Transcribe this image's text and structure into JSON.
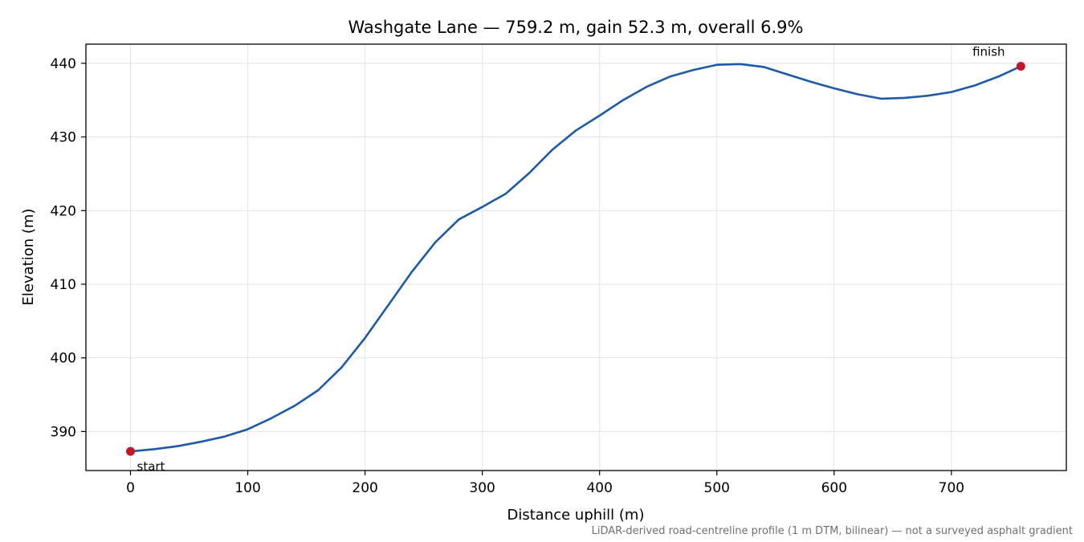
{
  "chart_data": {
    "type": "line",
    "title": "Washgate Lane — 759.2 m, gain 52.3 m, overall 6.9%",
    "xlabel": "Distance uphill (m)",
    "ylabel": "Elevation (m)",
    "xlim": [
      -38,
      798
    ],
    "ylim": [
      384.7,
      442.6
    ],
    "x_ticks": [
      0,
      100,
      200,
      300,
      400,
      500,
      600,
      700
    ],
    "y_ticks": [
      390,
      400,
      410,
      420,
      430,
      440
    ],
    "grid": true,
    "line_color": "#1f5aa6",
    "marker_color": "#c0182a",
    "series": [
      {
        "x": [
          0,
          20,
          40,
          60,
          80,
          100,
          120,
          140,
          160,
          180,
          200,
          220,
          240,
          260,
          280,
          300,
          320,
          340,
          360,
          380,
          400,
          420,
          440,
          460,
          480,
          500,
          520,
          540,
          560,
          580,
          600,
          620,
          640,
          660,
          680,
          700,
          720,
          740,
          759.2
        ],
        "y": [
          387.3,
          387.6,
          388.0,
          388.6,
          389.3,
          390.3,
          391.8,
          393.5,
          395.6,
          398.7,
          402.7,
          407.2,
          411.7,
          415.7,
          418.8,
          420.5,
          422.3,
          425.1,
          428.3,
          430.9,
          432.9,
          435.0,
          436.8,
          438.2,
          439.1,
          439.8,
          439.9,
          439.5,
          438.5,
          437.5,
          436.6,
          435.8,
          435.2,
          435.3,
          435.6,
          436.1,
          437.0,
          438.2,
          439.6
        ]
      }
    ],
    "annotations": [
      {
        "label": "start",
        "x": 0,
        "y": 387.3
      },
      {
        "label": "finish",
        "x": 759.2,
        "y": 439.6
      }
    ],
    "footnote": "LiDAR-derived road-centreline profile (1 m DTM, bilinear) — not a surveyed asphalt gradient"
  }
}
